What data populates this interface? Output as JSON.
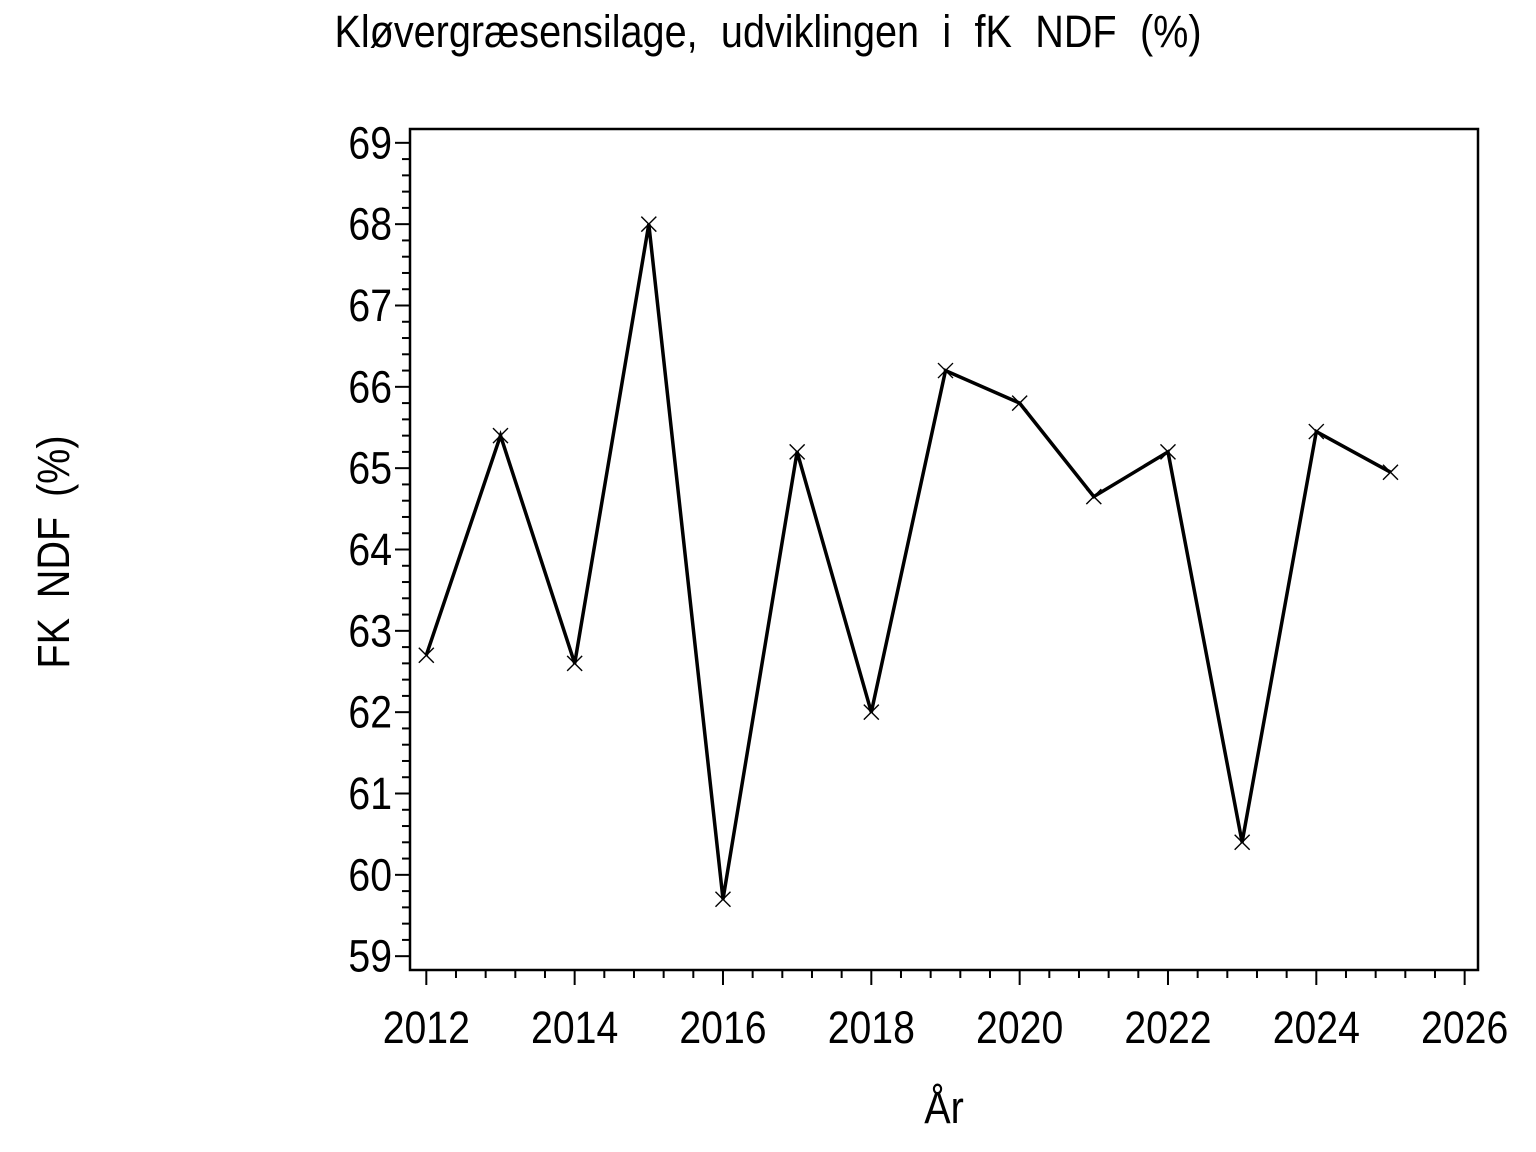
{
  "chart_data": {
    "type": "line",
    "title": "Kløvergræsensilage, udviklingen i fK NDF (%)",
    "xlabel": "År",
    "ylabel": "FK NDF (%)",
    "x": [
      2012,
      2013,
      2014,
      2015,
      2016,
      2017,
      2018,
      2019,
      2020,
      2021,
      2022,
      2023,
      2024,
      2025
    ],
    "y": [
      62.7,
      65.4,
      62.6,
      68.0,
      59.7,
      65.2,
      62.0,
      66.2,
      65.8,
      64.65,
      65.2,
      60.4,
      65.45,
      64.95
    ],
    "series_name": "fK NDF (%)",
    "xlim": [
      2011.78,
      2026.18
    ],
    "ylim": [
      58.83,
      69.17
    ],
    "x_major_ticks": [
      2012,
      2014,
      2016,
      2018,
      2020,
      2022,
      2024,
      2026
    ],
    "x_minor_step": 0.4,
    "y_major_ticks": [
      59,
      60,
      61,
      62,
      63,
      64,
      65,
      66,
      67,
      68,
      69
    ],
    "y_minor_step": 0.2,
    "marker": "x-cross",
    "line_color": "#000000",
    "axis_color": "#000000",
    "background_color": "#ffffff",
    "grid": false,
    "legend": "none"
  }
}
